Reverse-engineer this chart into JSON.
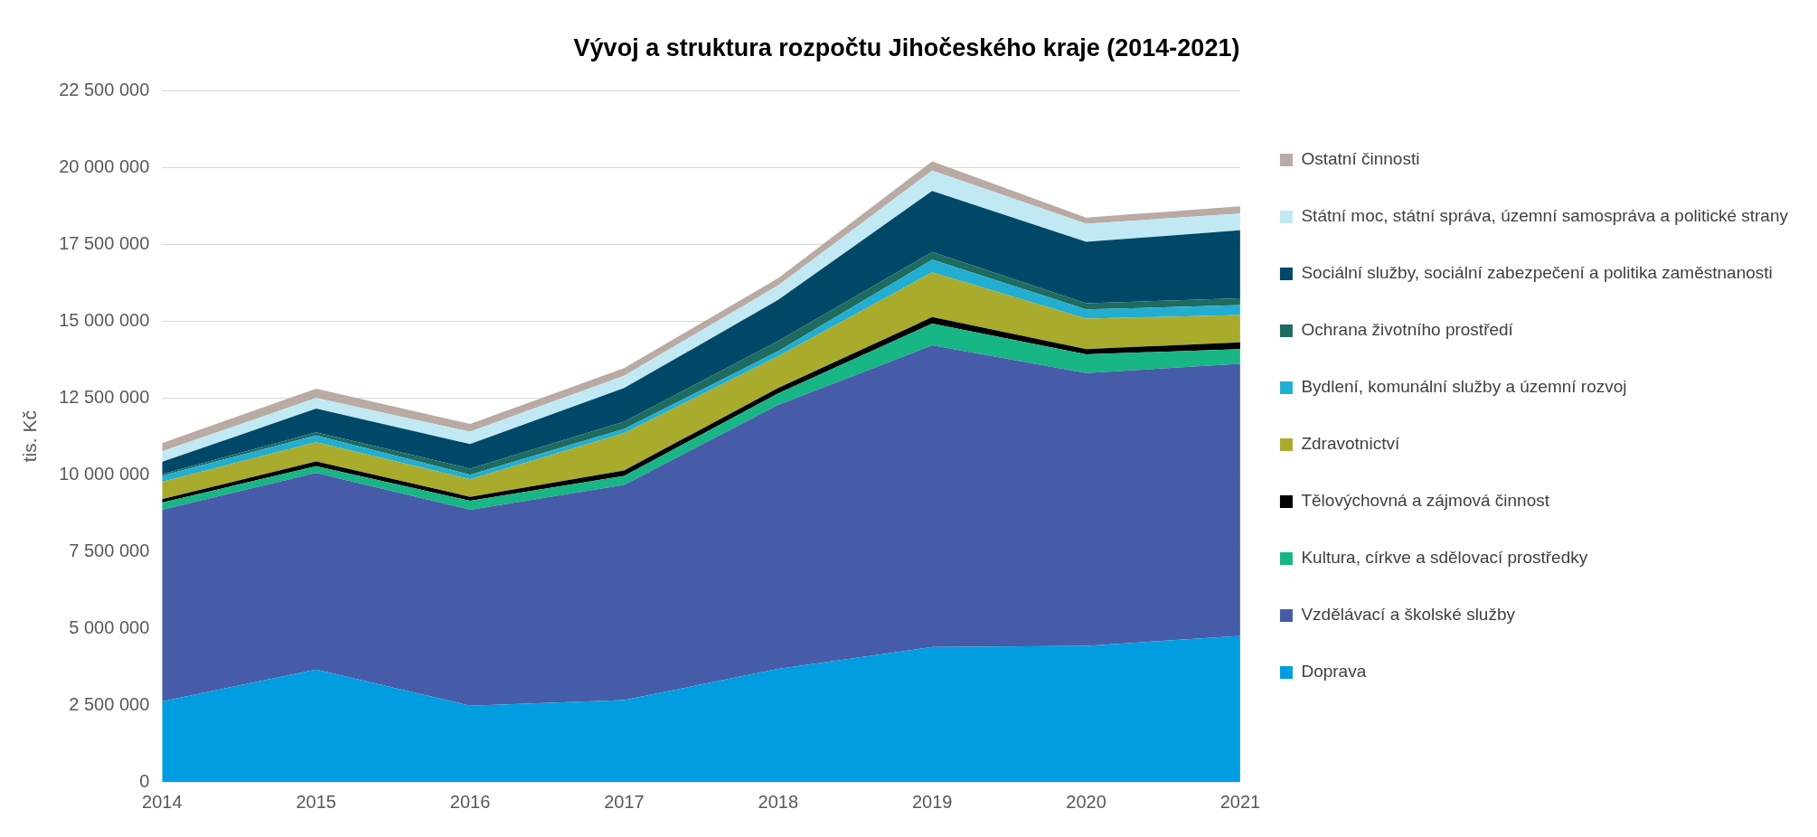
{
  "chart_data": {
    "type": "area",
    "title": "Vývoj a struktura rozpočtu Jihočeského kraje (2014-2021)",
    "ylabel": "tis. Kč",
    "stacked": true,
    "categories": [
      "2014",
      "2015",
      "2016",
      "2017",
      "2018",
      "2019",
      "2020",
      "2021"
    ],
    "series": [
      {
        "name": "Doprava",
        "color": "#009ee0",
        "values": [
          2620000,
          3660000,
          2480000,
          2660000,
          3680000,
          4390000,
          4430000,
          4750000
        ]
      },
      {
        "name": "Vzdělávací a školské služby",
        "color": "#475ca8",
        "values": [
          6240000,
          6400000,
          6380000,
          7010000,
          8590000,
          9820000,
          8880000,
          8860000
        ]
      },
      {
        "name": "Kultura, církve a sdělovací prostředky",
        "color": "#18b585",
        "values": [
          230000,
          220000,
          290000,
          290000,
          380000,
          710000,
          610000,
          480000
        ]
      },
      {
        "name": "Tělovýchovná a zájmová činnost",
        "color": "#000000",
        "values": [
          110000,
          150000,
          130000,
          180000,
          170000,
          210000,
          170000,
          220000
        ]
      },
      {
        "name": "Zdravotnictví",
        "color": "#a8ab2c",
        "values": [
          570000,
          630000,
          570000,
          1210000,
          1030000,
          1460000,
          990000,
          890000
        ]
      },
      {
        "name": "Bydlení, komunální služby a územní rozvoj",
        "color": "#22aed1",
        "values": [
          200000,
          220000,
          150000,
          140000,
          170000,
          410000,
          300000,
          320000
        ]
      },
      {
        "name": "Ochrana životního prostředí",
        "color": "#1e6b60",
        "values": [
          50000,
          100000,
          200000,
          240000,
          330000,
          250000,
          200000,
          220000
        ]
      },
      {
        "name": "Sociální služby, sociální zabezpečení a politika zaměstnanosti",
        "color": "#004868",
        "values": [
          400000,
          770000,
          800000,
          1090000,
          1340000,
          1990000,
          2000000,
          2220000
        ]
      },
      {
        "name": "Státní moc, státní správa, územní samospráva a politické strany",
        "color": "#c1e9f3",
        "values": [
          340000,
          350000,
          400000,
          400000,
          470000,
          660000,
          590000,
          540000
        ]
      },
      {
        "name": "Ostatní činnosti",
        "color": "#b9aba3",
        "values": [
          270000,
          300000,
          250000,
          250000,
          240000,
          300000,
          200000,
          240000
        ]
      }
    ],
    "ylim": [
      0,
      22500000
    ],
    "yticks": [
      0,
      {
        "value": 2500000,
        "label": "2 500 000"
      },
      {
        "value": 5000000,
        "label": "5 000 000"
      },
      {
        "value": 7500000,
        "label": "7 500 000"
      },
      {
        "value": 10000000,
        "label": "10 000 000"
      },
      {
        "value": 12500000,
        "label": "12 500 000"
      },
      {
        "value": 15000000,
        "label": "15 000 000"
      },
      {
        "value": 17500000,
        "label": "17 500 000"
      },
      {
        "value": 20000000,
        "label": "20 000 000"
      },
      {
        "value": 22500000,
        "label": "22 500 000"
      }
    ],
    "grid": "y",
    "legend": "right"
  }
}
